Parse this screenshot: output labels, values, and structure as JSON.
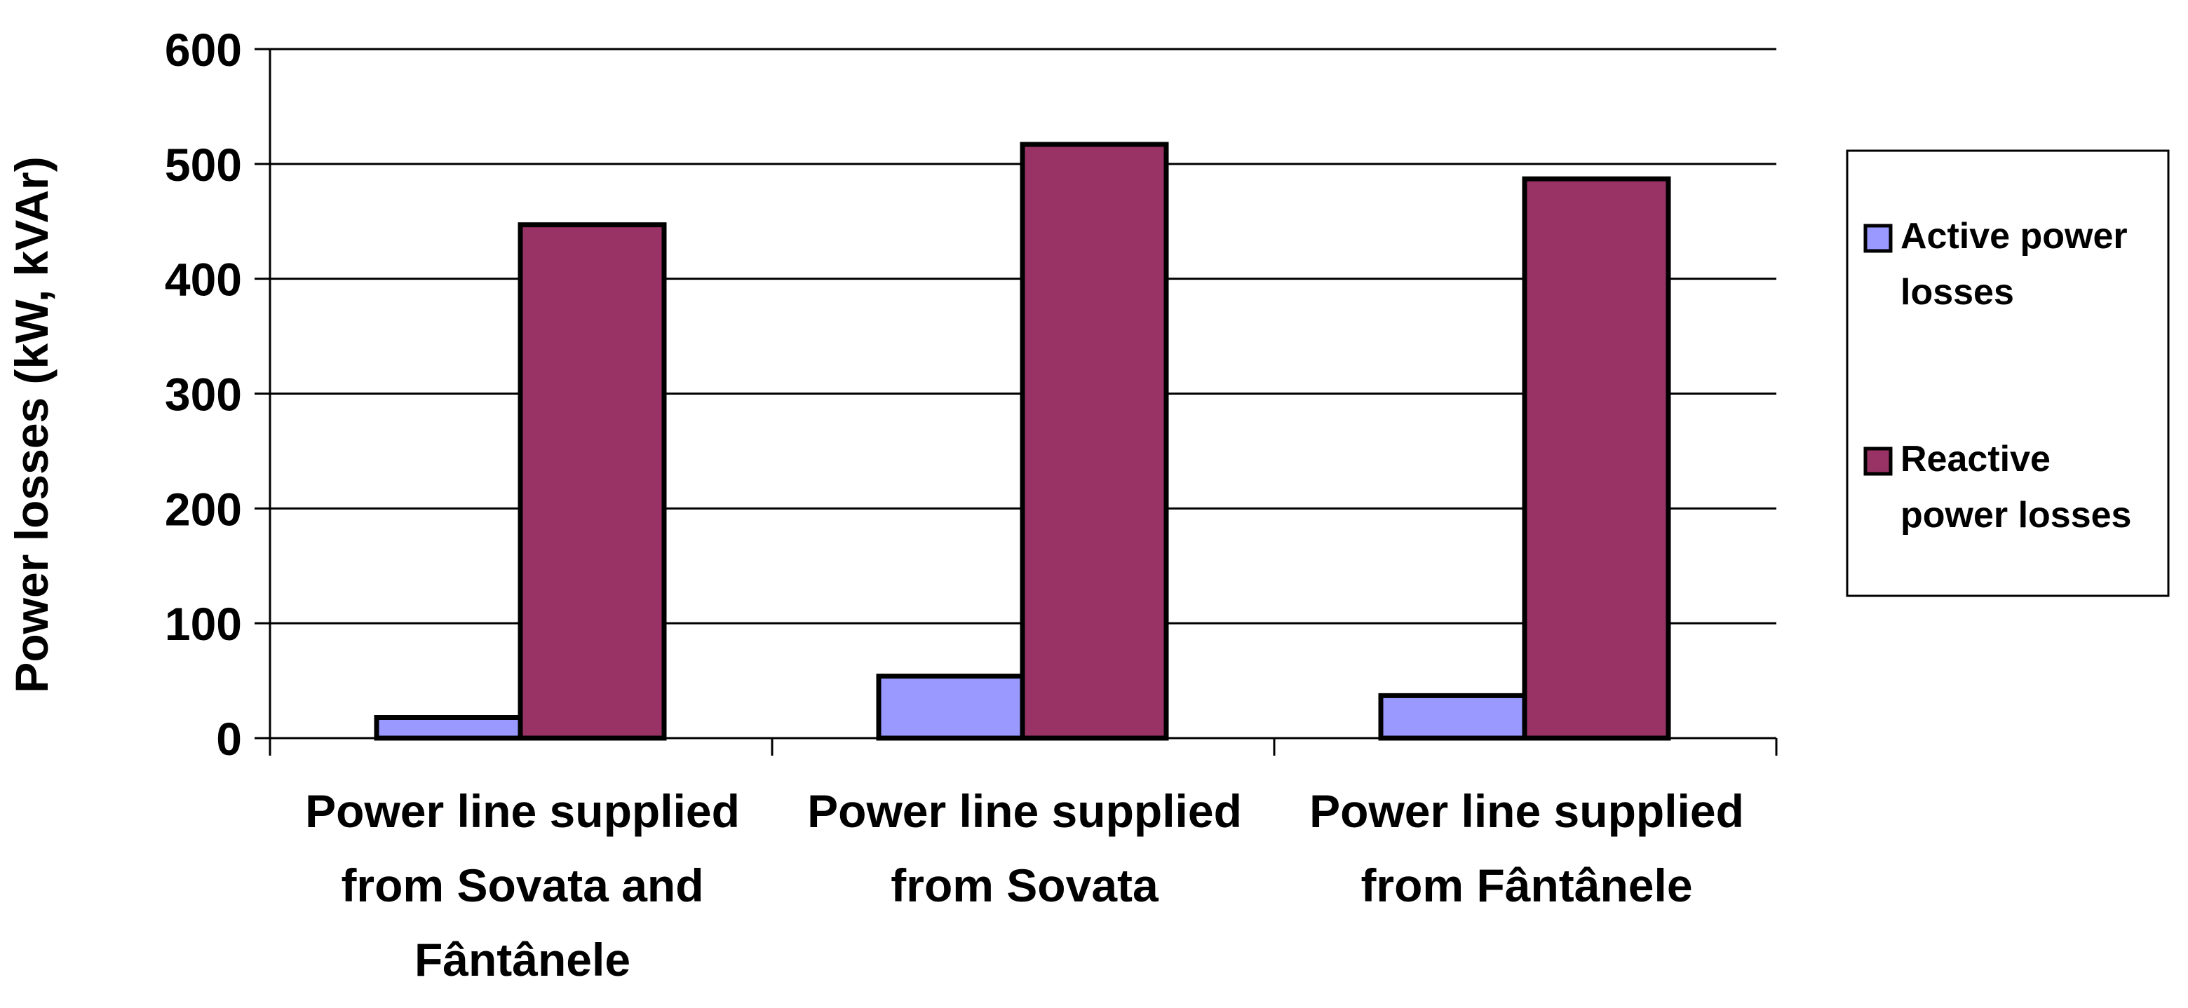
{
  "chart_data": {
    "type": "bar",
    "title": "",
    "xlabel": "",
    "ylabel": "Power losses (kW, kVAr)",
    "ylim": [
      0,
      600
    ],
    "yticks": [
      0,
      100,
      200,
      300,
      400,
      500,
      600
    ],
    "grid": true,
    "legend_position": "right",
    "categories": [
      [
        "Power line supplied",
        "from Sovata and",
        "Fântânele"
      ],
      [
        "Power line supplied",
        "from Sovata"
      ],
      [
        "Power line supplied",
        "from Fântânele"
      ]
    ],
    "series": [
      {
        "name": [
          "Active power",
          "losses"
        ],
        "color": "#9999ff",
        "values": [
          18,
          54,
          37
        ]
      },
      {
        "name": [
          "Reactive",
          "power losses"
        ],
        "color": "#993366",
        "values": [
          447,
          517,
          487
        ]
      }
    ]
  }
}
